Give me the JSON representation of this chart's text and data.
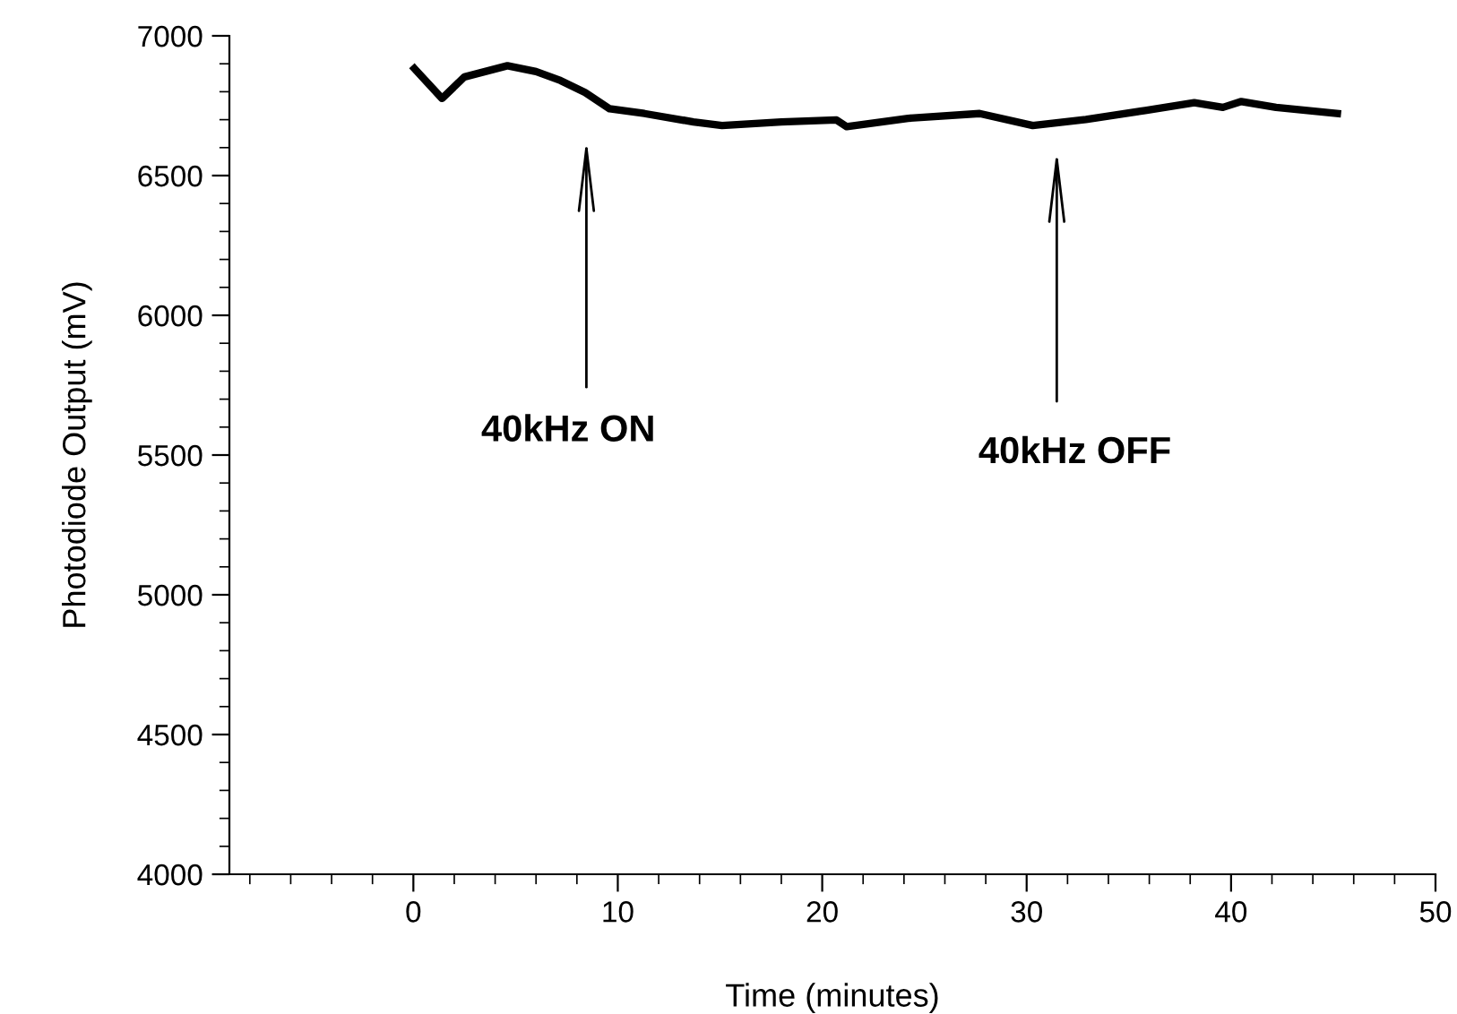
{
  "chart_data": {
    "type": "line",
    "xlabel": "Time (minutes)",
    "ylabel": "Photodiode Output (mV)",
    "x": [
      0.05,
      1.4,
      2.5,
      4.6,
      6.0,
      7.2,
      8.4,
      9.6,
      11.3,
      13.7,
      15.1,
      18.0,
      20.7,
      21.2,
      24.2,
      27.7,
      30.3,
      32.9,
      35.8,
      38.2,
      39.6,
      40.5,
      42.2,
      45.2
    ],
    "series": [
      {
        "color": "#000000",
        "values": [
          6883,
          6776,
          6853,
          6893,
          6872,
          6840,
          6797,
          6739,
          6722,
          6692,
          6679,
          6692,
          6699,
          6675,
          6705,
          6722,
          6679,
          6701,
          6733,
          6761,
          6744,
          6765,
          6744,
          6722
        ]
      }
    ],
    "xlim": [
      -9,
      50
    ],
    "xticks": [
      0,
      10,
      20,
      30,
      40,
      50
    ],
    "ylim": [
      4000,
      7000
    ],
    "yticks": [
      4000,
      4500,
      5000,
      5500,
      6000,
      6500,
      7000
    ],
    "grid": false,
    "legend": false,
    "marker": "none",
    "line_style": "solid",
    "annotations": [
      "40kHz ON",
      "40kHz OFF"
    ]
  }
}
